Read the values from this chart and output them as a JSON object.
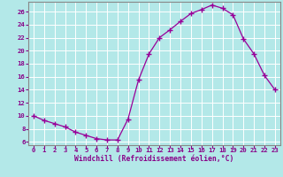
{
  "x": [
    0,
    1,
    2,
    3,
    4,
    5,
    6,
    7,
    8,
    9,
    10,
    11,
    12,
    13,
    14,
    15,
    16,
    17,
    18,
    19,
    20,
    21,
    22,
    23
  ],
  "y": [
    10.0,
    9.3,
    8.8,
    8.3,
    7.5,
    7.0,
    6.5,
    6.3,
    6.3,
    9.5,
    15.5,
    19.5,
    22.0,
    23.2,
    24.5,
    25.7,
    26.3,
    27.0,
    26.5,
    25.5,
    21.8,
    19.5,
    16.2,
    14.0
  ],
  "line_color": "#990099",
  "marker": "+",
  "marker_size": 4,
  "bg_color": "#b3e8e8",
  "grid_color": "#ffffff",
  "xlabel": "Windchill (Refroidissement éolien,°C)",
  "ylim": [
    5.5,
    27.5
  ],
  "xlim": [
    -0.5,
    23.5
  ],
  "yticks": [
    6,
    8,
    10,
    12,
    14,
    16,
    18,
    20,
    22,
    24,
    26
  ],
  "xticks": [
    0,
    1,
    2,
    3,
    4,
    5,
    6,
    7,
    8,
    9,
    10,
    11,
    12,
    13,
    14,
    15,
    16,
    17,
    18,
    19,
    20,
    21,
    22,
    23
  ],
  "tick_color": "#880088",
  "label_color": "#880088",
  "spine_color": "#888888",
  "tick_fontsize": 5.2,
  "xlabel_fontsize": 5.8
}
